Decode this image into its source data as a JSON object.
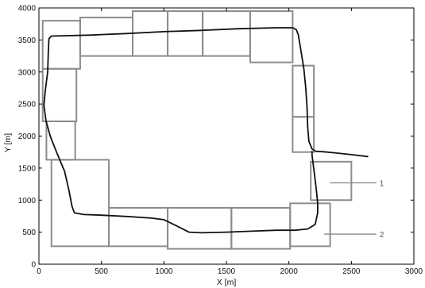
{
  "chart_data": {
    "type": "line",
    "title": "",
    "xlabel": "X [m]",
    "ylabel": "Y [m]",
    "xlim": [
      0,
      3000
    ],
    "ylim": [
      0,
      4000
    ],
    "x_ticks": [
      0,
      500,
      1000,
      1500,
      2000,
      2500,
      3000
    ],
    "y_ticks": [
      0,
      500,
      1000,
      1500,
      2000,
      2500,
      3000,
      3500,
      4000
    ],
    "x_tick_labels": [
      "0",
      "500",
      "1000",
      "1500",
      "2000",
      "2500",
      "3000"
    ],
    "y_tick_labels": [
      "0",
      "500",
      "1000",
      "1500",
      "2000",
      "2500",
      "3000",
      "3500",
      "4000"
    ],
    "grid": false,
    "legend": "none",
    "colors": {
      "path": "#111111",
      "boxes": "#8c8c8c",
      "annotations": "#8c8c8c",
      "axes": "#000000"
    },
    "series": [
      {
        "values": [
          [
            2630,
            1680
          ],
          [
            2500,
            1710
          ],
          [
            2380,
            1735
          ],
          [
            2280,
            1755
          ],
          [
            2215,
            1762
          ],
          [
            2185,
            1800
          ],
          [
            2160,
            1920
          ],
          [
            2150,
            2150
          ],
          [
            2145,
            2450
          ],
          [
            2135,
            2750
          ],
          [
            2120,
            3050
          ],
          [
            2095,
            3350
          ],
          [
            2075,
            3580
          ],
          [
            2060,
            3660
          ],
          [
            2030,
            3690
          ],
          [
            1900,
            3690
          ],
          [
            1600,
            3675
          ],
          [
            1300,
            3650
          ],
          [
            1000,
            3630
          ],
          [
            700,
            3600
          ],
          [
            400,
            3575
          ],
          [
            180,
            3565
          ],
          [
            100,
            3560
          ],
          [
            80,
            3520
          ],
          [
            75,
            3300
          ],
          [
            70,
            3000
          ],
          [
            50,
            2700
          ],
          [
            40,
            2480
          ],
          [
            55,
            2250
          ],
          [
            90,
            2000
          ],
          [
            145,
            1730
          ],
          [
            205,
            1450
          ],
          [
            240,
            1150
          ],
          [
            265,
            900
          ],
          [
            285,
            800
          ],
          [
            360,
            775
          ],
          [
            500,
            765
          ],
          [
            700,
            745
          ],
          [
            900,
            720
          ],
          [
            1000,
            695
          ],
          [
            1100,
            600
          ],
          [
            1200,
            500
          ],
          [
            1300,
            490
          ],
          [
            1500,
            500
          ],
          [
            1700,
            515
          ],
          [
            1900,
            530
          ],
          [
            2050,
            530
          ],
          [
            2150,
            550
          ],
          [
            2210,
            620
          ],
          [
            2230,
            800
          ],
          [
            2230,
            950
          ],
          [
            2220,
            1150
          ],
          [
            2205,
            1400
          ],
          [
            2185,
            1700
          ],
          [
            2185,
            1760
          ]
        ]
      }
    ],
    "boxes": [
      {
        "x": [
          30,
          330
        ],
        "y": [
          3050,
          3800
        ]
      },
      {
        "x": [
          330,
          750
        ],
        "y": [
          3250,
          3850
        ]
      },
      {
        "x": [
          750,
          1030
        ],
        "y": [
          3250,
          3950
        ]
      },
      {
        "x": [
          1030,
          1310
        ],
        "y": [
          3250,
          3950
        ]
      },
      {
        "x": [
          1310,
          1690
        ],
        "y": [
          3250,
          3950
        ]
      },
      {
        "x": [
          1690,
          2030
        ],
        "y": [
          3150,
          3950
        ]
      },
      {
        "x": [
          2030,
          2200
        ],
        "y": [
          2300,
          3100
        ]
      },
      {
        "x": [
          2030,
          2200
        ],
        "y": [
          1750,
          2300
        ]
      },
      {
        "x": [
          30,
          300
        ],
        "y": [
          2230,
          3050
        ]
      },
      {
        "x": [
          60,
          290
        ],
        "y": [
          1630,
          2230
        ]
      },
      {
        "x": [
          100,
          560
        ],
        "y": [
          280,
          1630
        ]
      },
      {
        "x": [
          560,
          1030
        ],
        "y": [
          280,
          880
        ]
      },
      {
        "x": [
          1030,
          1540
        ],
        "y": [
          240,
          880
        ]
      },
      {
        "x": [
          1540,
          2010
        ],
        "y": [
          240,
          880
        ]
      },
      {
        "x": [
          2010,
          2330
        ],
        "y": [
          280,
          950
        ]
      },
      {
        "x": [
          2175,
          2500
        ],
        "y": [
          1000,
          1600
        ]
      }
    ],
    "annotations": [
      {
        "label": "1",
        "from": [
          2330,
          1270
        ],
        "to": [
          2700,
          1270
        ]
      },
      {
        "label": "2",
        "from": [
          2280,
          470
        ],
        "to": [
          2700,
          470
        ]
      }
    ]
  }
}
